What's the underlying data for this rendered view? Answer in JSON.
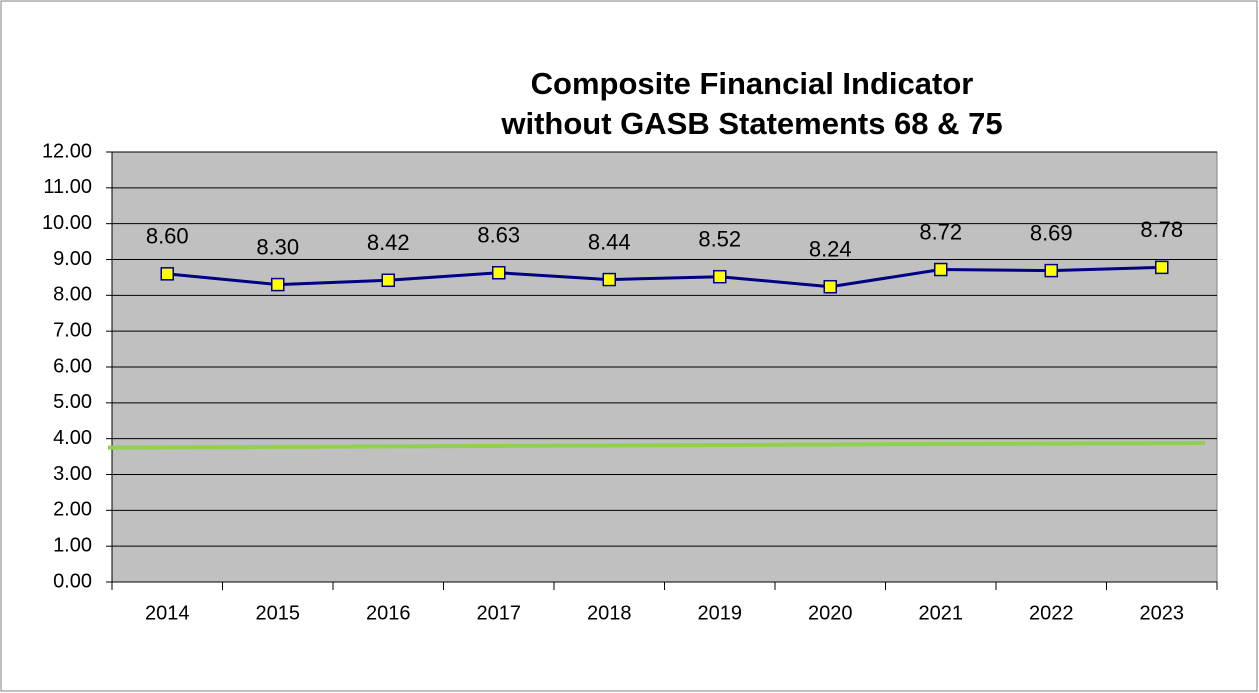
{
  "chart_data": {
    "type": "line",
    "title": [
      "Composite Financial Indicator",
      "without GASB Statements 68 & 75"
    ],
    "categories": [
      "2014",
      "2015",
      "2016",
      "2017",
      "2018",
      "2019",
      "2020",
      "2021",
      "2022",
      "2023"
    ],
    "series": [
      {
        "color": "#000080",
        "marker_color": "#ffff00",
        "values": [
          8.6,
          8.3,
          8.42,
          8.63,
          8.44,
          8.52,
          8.24,
          8.72,
          8.69,
          8.78
        ],
        "value_labels": [
          "8.60",
          "8.30",
          "8.42",
          "8.63",
          "8.44",
          "8.52",
          "8.24",
          "8.72",
          "8.69",
          "8.78"
        ]
      }
    ],
    "reference_line": {
      "values": [
        3.75,
        3.88
      ],
      "color": "#92d050"
    },
    "ylim": [
      0,
      12
    ],
    "yticks": [
      {
        "value": 0,
        "label": "0.00"
      },
      {
        "value": 1,
        "label": "1.00"
      },
      {
        "value": 2,
        "label": "2.00"
      },
      {
        "value": 3,
        "label": "3.00"
      },
      {
        "value": 4,
        "label": "4.00"
      },
      {
        "value": 5,
        "label": "5.00"
      },
      {
        "value": 6,
        "label": "6.00"
      },
      {
        "value": 7,
        "label": "7.00"
      },
      {
        "value": 8,
        "label": "8.00"
      },
      {
        "value": 9,
        "label": "9.00"
      },
      {
        "value": 10,
        "label": "10.00"
      },
      {
        "value": 11,
        "label": "11.00"
      },
      {
        "value": 12,
        "label": "12.00"
      }
    ],
    "grid": true,
    "plot_background": "#c0c0c0"
  }
}
